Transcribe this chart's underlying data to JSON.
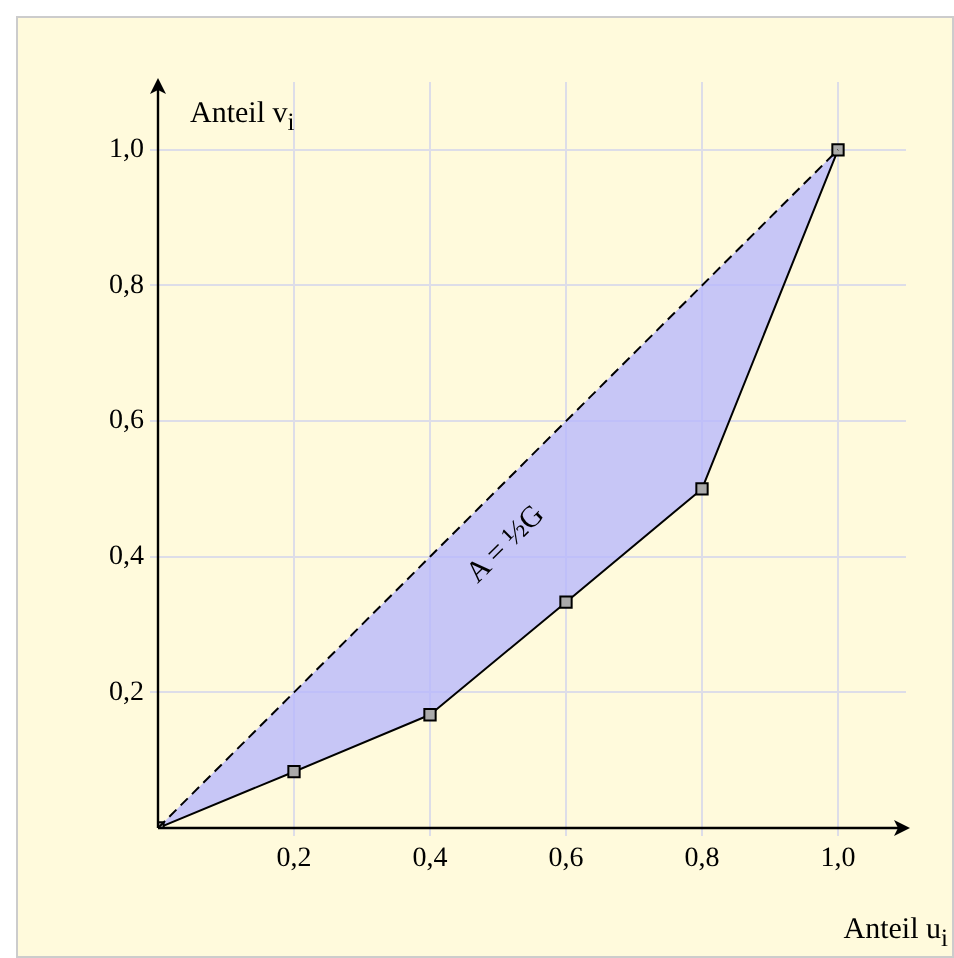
{
  "chart_data": {
    "type": "line",
    "xlabel": "Anteil u$_{i}$",
    "ylabel": "Anteil v$_{i}$",
    "xlim": [
      0,
      1.1
    ],
    "ylim": [
      0,
      1.1
    ],
    "xticks": [
      {
        "value": 0.2,
        "label": "0,2"
      },
      {
        "value": 0.4,
        "label": "0,4"
      },
      {
        "value": 0.6,
        "label": "0,6"
      },
      {
        "value": 0.8,
        "label": "0,8"
      },
      {
        "value": 1.0,
        "label": "1,0"
      }
    ],
    "yticks": [
      {
        "value": 0.2,
        "label": "0,2"
      },
      {
        "value": 0.4,
        "label": "0,4"
      },
      {
        "value": 0.6,
        "label": "0,6"
      },
      {
        "value": 0.8,
        "label": "0,8"
      },
      {
        "value": 1.0,
        "label": "1,0"
      }
    ],
    "grid": true,
    "legend": false,
    "annotations": [
      "A = ½G"
    ],
    "series": [
      {
        "color": "#000000",
        "line_style": "dashed",
        "marker": "none",
        "x": [
          0,
          0.2,
          0.4,
          0.6,
          0.8,
          1.0
        ],
        "values": [
          0,
          0.2,
          0.4,
          0.6,
          0.8,
          1.0
        ],
        "lower": [
          0,
          0.083,
          0.167,
          0.333,
          0.5,
          1.0
        ],
        "upper": [
          0,
          0.2,
          0.4,
          0.6,
          0.8,
          1.0
        ]
      },
      {
        "color": "#000000",
        "line_style": "solid",
        "marker": "square",
        "x": [
          0,
          0.2,
          0.4,
          0.6,
          0.8,
          1.0
        ],
        "values": [
          0,
          0.083,
          0.167,
          0.333,
          0.5,
          1.0
        ]
      }
    ]
  }
}
